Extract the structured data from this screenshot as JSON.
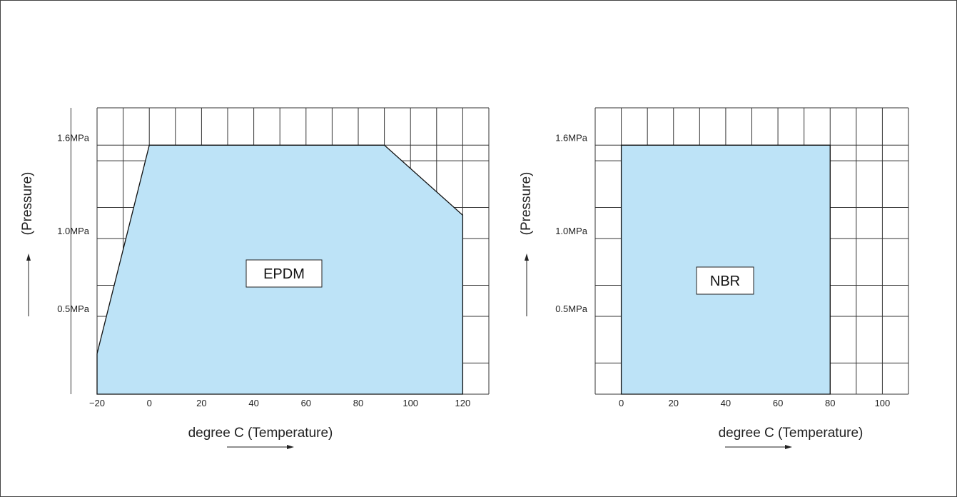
{
  "chart_data": [
    {
      "type": "area",
      "region_label": "EPDM",
      "xlabel": "degree C (Temperature)",
      "ylabel": "(Pressure)",
      "xlim": [
        -20,
        130
      ],
      "ylim": [
        0,
        1.84
      ],
      "x_ticks": [
        -20,
        0,
        20,
        40,
        60,
        80,
        100,
        120
      ],
      "x_tick_labels": [
        "−20",
        "0",
        "20",
        "40",
        "60",
        "80",
        "100",
        "120"
      ],
      "x_grid": [
        -30,
        -20,
        -10,
        0,
        10,
        20,
        30,
        40,
        50,
        60,
        70,
        80,
        90,
        100,
        110,
        120,
        130
      ],
      "y_grid": [
        0,
        0.2,
        0.5,
        0.7,
        1.0,
        1.2,
        1.5,
        1.6,
        1.84
      ],
      "y_levels": [
        {
          "value": 1.6,
          "label": "1.6MPa"
        },
        {
          "value": 1.0,
          "label": "1.0MPa"
        },
        {
          "value": 0.5,
          "label": "0.5MPa"
        }
      ],
      "region": [
        {
          "x": -20,
          "y": 0
        },
        {
          "x": -20,
          "y": 0.26
        },
        {
          "x": 0,
          "y": 1.6
        },
        {
          "x": 90,
          "y": 1.6
        },
        {
          "x": 120,
          "y": 1.15
        },
        {
          "x": 120,
          "y": 0
        }
      ],
      "fill_color": "#bde3f7",
      "grid": true
    },
    {
      "type": "area",
      "region_label": "NBR",
      "xlabel": "degree C (Temperature)",
      "ylabel": "(Pressure)",
      "xlim": [
        -10,
        110
      ],
      "ylim": [
        0,
        1.84
      ],
      "x_ticks": [
        0,
        20,
        40,
        60,
        80,
        100
      ],
      "x_tick_labels": [
        "0",
        "20",
        "40",
        "60",
        "80",
        "100"
      ],
      "x_grid": [
        -10,
        0,
        10,
        20,
        30,
        40,
        50,
        60,
        70,
        80,
        90,
        100,
        110
      ],
      "y_grid": [
        0,
        0.2,
        0.5,
        0.7,
        1.0,
        1.2,
        1.5,
        1.6,
        1.84
      ],
      "y_levels": [
        {
          "value": 1.6,
          "label": "1.6MPa"
        },
        {
          "value": 1.0,
          "label": "1.0MPa"
        },
        {
          "value": 0.5,
          "label": "0.5MPa"
        }
      ],
      "region": [
        {
          "x": 0,
          "y": 0
        },
        {
          "x": 0,
          "y": 1.6
        },
        {
          "x": 80,
          "y": 1.6
        },
        {
          "x": 80,
          "y": 0
        }
      ],
      "fill_color": "#bde3f7",
      "grid": true
    }
  ]
}
